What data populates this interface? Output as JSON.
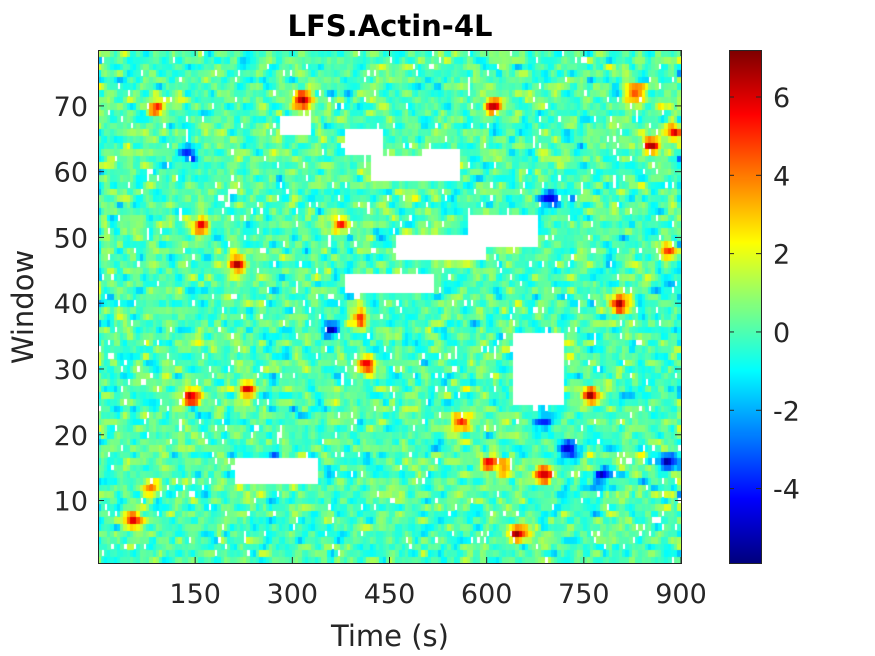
{
  "chart_data": {
    "type": "heatmap",
    "title": "LFS.Actin-4L",
    "xlabel": "Time (s)",
    "ylabel": "Window",
    "xlim": [
      0,
      900
    ],
    "ylim": [
      0.5,
      78.5
    ],
    "x_ticks": [
      150,
      300,
      450,
      600,
      750,
      900
    ],
    "y_ticks": [
      10,
      20,
      30,
      40,
      50,
      60,
      70
    ],
    "n_time_frames": 180,
    "n_windows": 78,
    "colormap": "jet",
    "missing_value_color": "#ffffff",
    "clim": [
      -5.9,
      7.2
    ],
    "colorbar_ticks": [
      -4,
      -2,
      0,
      2,
      4,
      6
    ],
    "background_level": 0,
    "noise_sd": 1.1,
    "missing_regions": [
      {
        "t_start": 500,
        "t_end": 560,
        "window_start": 59,
        "window_end": 63
      },
      {
        "t_start": 420,
        "t_end": 500,
        "window_start": 59,
        "window_end": 62
      },
      {
        "t_start": 380,
        "t_end": 440,
        "window_start": 63,
        "window_end": 66
      },
      {
        "t_start": 460,
        "t_end": 600,
        "window_start": 47,
        "window_end": 50
      },
      {
        "t_start": 570,
        "t_end": 680,
        "window_start": 49,
        "window_end": 53
      },
      {
        "t_start": 380,
        "t_end": 520,
        "window_start": 42,
        "window_end": 44
      },
      {
        "t_start": 640,
        "t_end": 720,
        "window_start": 25,
        "window_end": 35
      },
      {
        "t_start": 210,
        "t_end": 340,
        "window_start": 13,
        "window_end": 16
      },
      {
        "t_start": 280,
        "t_end": 330,
        "window_start": 66,
        "window_end": 68
      }
    ],
    "hotspots": [
      {
        "t": 55,
        "window": 7,
        "value": 6.0
      },
      {
        "t": 80,
        "window": 12,
        "value": 4.5
      },
      {
        "t": 145,
        "window": 26,
        "value": 6.5
      },
      {
        "t": 215,
        "window": 46,
        "value": 6.5
      },
      {
        "t": 230,
        "window": 27,
        "value": 5.0
      },
      {
        "t": 160,
        "window": 52,
        "value": 5.0
      },
      {
        "t": 315,
        "window": 71,
        "value": 6.5
      },
      {
        "t": 405,
        "window": 38,
        "value": 5.5
      },
      {
        "t": 415,
        "window": 31,
        "value": 6.0
      },
      {
        "t": 375,
        "window": 52,
        "value": 5.0
      },
      {
        "t": 610,
        "window": 70,
        "value": 6.5
      },
      {
        "t": 650,
        "window": 5,
        "value": 6.5
      },
      {
        "t": 605,
        "window": 16,
        "value": 6.0
      },
      {
        "t": 690,
        "window": 14,
        "value": 6.5
      },
      {
        "t": 760,
        "window": 26,
        "value": 6.0
      },
      {
        "t": 805,
        "window": 40,
        "value": 6.5
      },
      {
        "t": 855,
        "window": 64,
        "value": 6.5
      },
      {
        "t": 830,
        "window": 72,
        "value": 5.5
      },
      {
        "t": 890,
        "window": 66,
        "value": 5.0
      },
      {
        "t": 560,
        "window": 22,
        "value": 5.5
      },
      {
        "t": 630,
        "window": 15,
        "value": 4.5
      },
      {
        "t": 880,
        "window": 48,
        "value": 5.0
      },
      {
        "t": 90,
        "window": 70,
        "value": 5.0
      }
    ],
    "coldspots": [
      {
        "t": 725,
        "window": 18,
        "value": -5.5
      },
      {
        "t": 700,
        "window": 56,
        "value": -5.0
      },
      {
        "t": 140,
        "window": 63,
        "value": -4.5
      },
      {
        "t": 780,
        "window": 14,
        "value": -4.5
      },
      {
        "t": 360,
        "window": 36,
        "value": -4.0
      },
      {
        "t": 700,
        "window": 32,
        "value": -4.0
      },
      {
        "t": 880,
        "window": 16,
        "value": -5.0
      },
      {
        "t": 690,
        "window": 22,
        "value": -4.0
      }
    ]
  }
}
